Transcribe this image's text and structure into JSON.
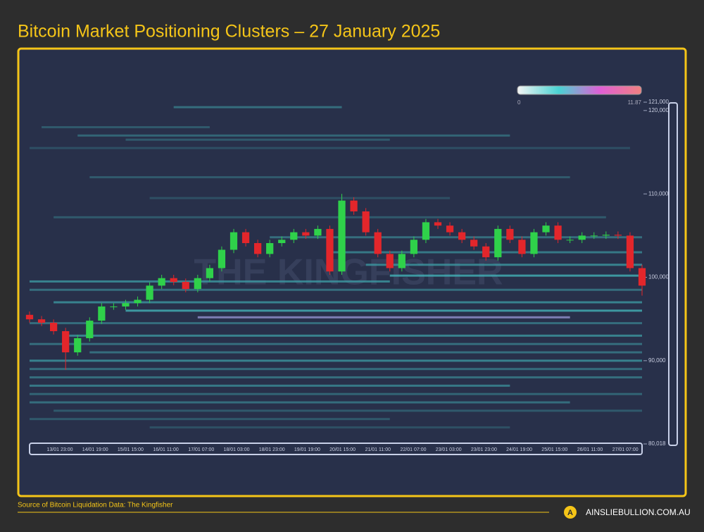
{
  "chart_data": {
    "type": "candlestick",
    "title": "Bitcoin Market Positioning Clusters – 27 January 2025",
    "watermark": "THE KINGFISHER",
    "source": "Source of Bitcoin Liquidation Data: The Kingfisher",
    "brand": "AINSLIEBULLION.COM.AU",
    "ylim": [
      80018,
      121000
    ],
    "yticks": [
      {
        "value": 80018,
        "label": "80,018"
      },
      {
        "value": 90000,
        "label": "90,000"
      },
      {
        "value": 100000,
        "label": "100,000"
      },
      {
        "value": 110000,
        "label": "110,000"
      },
      {
        "value": 120000,
        "label": "120,000"
      },
      {
        "value": 121000,
        "label": "121,000"
      }
    ],
    "categories": [
      "13/01 23:00",
      "14/01 19:00",
      "15/01 15:00",
      "16/01 11:00",
      "17/01 07:00",
      "18/01 03:00",
      "18/01 23:00",
      "19/01 19:00",
      "20/01 15:00",
      "21/01 11:00",
      "22/01 07:00",
      "23/01 03:00",
      "23/01 23:00",
      "24/01 19:00",
      "25/01 15:00",
      "26/01 11:00",
      "27/01 07:00"
    ],
    "up_color": "#2fd14a",
    "down_color": "#e3262b",
    "open": [
      95500,
      94960,
      94550,
      93540,
      91000,
      92700,
      94800,
      96500,
      96500,
      96900,
      97300,
      99000,
      99900,
      99450,
      98600,
      99900,
      101100,
      103300,
      105400,
      104100,
      102800,
      104100,
      104500,
      105400,
      105000,
      105800,
      100700,
      109200,
      107900,
      105400,
      102800,
      101100,
      102800,
      104500,
      106600,
      106200,
      105400,
      104500,
      103700,
      102400,
      105800,
      104500,
      102800,
      105400,
      106200,
      104500,
      104500,
      105000,
      105000,
      105100,
      105000,
      101100
    ],
    "high": [
      95900,
      95360,
      94950,
      93940,
      93100,
      95200,
      96900,
      96900,
      97300,
      97700,
      99400,
      100300,
      100300,
      99850,
      100300,
      101500,
      103700,
      105800,
      105800,
      104500,
      104500,
      104900,
      105800,
      105800,
      106200,
      106200,
      110000,
      109600,
      108300,
      105800,
      103200,
      103200,
      104900,
      107000,
      107000,
      106600,
      105800,
      104900,
      104100,
      106200,
      106200,
      104900,
      105800,
      106600,
      106600,
      104900,
      105400,
      105400,
      105500,
      105500,
      105400,
      101500
    ],
    "low": [
      94560,
      94150,
      93140,
      88900,
      90600,
      92300,
      94400,
      96100,
      96100,
      96500,
      96900,
      98600,
      99050,
      98200,
      98200,
      99500,
      100700,
      102900,
      103700,
      102400,
      102400,
      103700,
      104100,
      104600,
      104600,
      100300,
      100300,
      107500,
      105000,
      102400,
      100700,
      100700,
      102400,
      104100,
      105800,
      105000,
      104100,
      103300,
      102000,
      102000,
      104100,
      102400,
      102400,
      105000,
      104100,
      104100,
      104100,
      104600,
      104600,
      104600,
      100700,
      97800
    ],
    "close": [
      94960,
      94550,
      93540,
      91000,
      92700,
      94800,
      96500,
      96500,
      96900,
      97300,
      99000,
      99900,
      99450,
      98600,
      99900,
      101100,
      103300,
      105400,
      104100,
      102800,
      104100,
      104500,
      105400,
      105000,
      105800,
      100700,
      109200,
      107900,
      105400,
      102800,
      101100,
      102800,
      104500,
      106600,
      106200,
      105400,
      104500,
      103700,
      102400,
      105800,
      104500,
      102800,
      105400,
      106200,
      104500,
      104500,
      105000,
      105000,
      105100,
      105000,
      101100,
      99000
    ],
    "colorbar": {
      "min": 0,
      "max": 11.87,
      "colors": [
        "#f4f4f4",
        "#49d3d3",
        "#e05fd6",
        "#f08080"
      ]
    },
    "clusters": [
      {
        "price": 120400,
        "start": 12,
        "end": 26,
        "intensity": 3
      },
      {
        "price": 118000,
        "start": 1,
        "end": 15,
        "intensity": 2
      },
      {
        "price": 117000,
        "start": 4,
        "end": 40,
        "intensity": 2.5
      },
      {
        "price": 116500,
        "start": 8,
        "end": 30,
        "intensity": 2
      },
      {
        "price": 115500,
        "start": 0,
        "end": 50,
        "intensity": 1.5
      },
      {
        "price": 112000,
        "start": 5,
        "end": 45,
        "intensity": 2
      },
      {
        "price": 109500,
        "start": 10,
        "end": 35,
        "intensity": 1.5
      },
      {
        "price": 107200,
        "start": 2,
        "end": 48,
        "intensity": 2
      },
      {
        "price": 104800,
        "start": 20,
        "end": 51,
        "intensity": 3
      },
      {
        "price": 103000,
        "start": 25,
        "end": 51,
        "intensity": 3.5
      },
      {
        "price": 101500,
        "start": 28,
        "end": 51,
        "intensity": 4
      },
      {
        "price": 100200,
        "start": 30,
        "end": 51,
        "intensity": 5
      },
      {
        "price": 99500,
        "start": 0,
        "end": 30,
        "intensity": 4
      },
      {
        "price": 98500,
        "start": 0,
        "end": 51,
        "intensity": 3
      },
      {
        "price": 97000,
        "start": 2,
        "end": 51,
        "intensity": 4
      },
      {
        "price": 96000,
        "start": 8,
        "end": 51,
        "intensity": 5
      },
      {
        "price": 95200,
        "start": 14,
        "end": 45,
        "intensity": 9
      },
      {
        "price": 94500,
        "start": 0,
        "end": 51,
        "intensity": 3
      },
      {
        "price": 93000,
        "start": 3,
        "end": 51,
        "intensity": 4
      },
      {
        "price": 92000,
        "start": 0,
        "end": 51,
        "intensity": 3
      },
      {
        "price": 91000,
        "start": 5,
        "end": 51,
        "intensity": 3
      },
      {
        "price": 90000,
        "start": 0,
        "end": 51,
        "intensity": 4
      },
      {
        "price": 89000,
        "start": 0,
        "end": 51,
        "intensity": 3
      },
      {
        "price": 88000,
        "start": 0,
        "end": 51,
        "intensity": 3
      },
      {
        "price": 87000,
        "start": 0,
        "end": 40,
        "intensity": 3.5
      },
      {
        "price": 86000,
        "start": 0,
        "end": 51,
        "intensity": 2.5
      },
      {
        "price": 85000,
        "start": 0,
        "end": 45,
        "intensity": 3
      },
      {
        "price": 84000,
        "start": 2,
        "end": 51,
        "intensity": 2
      },
      {
        "price": 83000,
        "start": 0,
        "end": 30,
        "intensity": 2
      },
      {
        "price": 82000,
        "start": 10,
        "end": 40,
        "intensity": 1.5
      }
    ]
  }
}
